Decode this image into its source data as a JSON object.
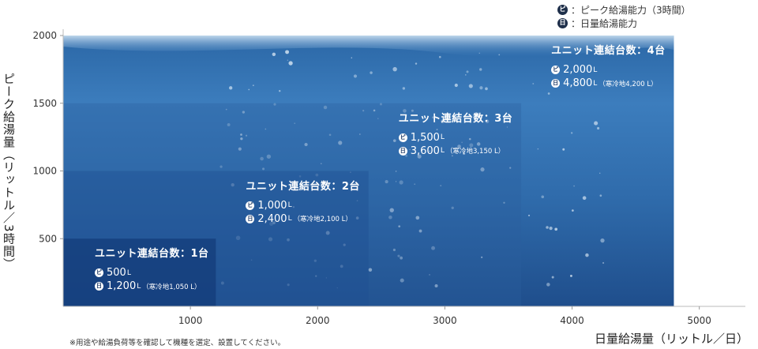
{
  "legend": {
    "peak_badge": "ピ",
    "peak_text": "：ピーク給湯能力（3時間）",
    "daily_badge": "日",
    "daily_text": "：日量給湯能力"
  },
  "axes": {
    "y_label": "ピーク給湯量（リットル／3時間）",
    "x_label": "日量給湯量（リットル／日）"
  },
  "footnote": "※用途や給湯負荷等を確認して機種を選定、設置してください。",
  "chart_data": {
    "type": "area",
    "x_ticks": [
      "1000",
      "2000",
      "3000",
      "4000",
      "5000"
    ],
    "y_ticks": [
      "500",
      "1000",
      "1500",
      "2000"
    ],
    "xlim": [
      0,
      5300
    ],
    "ylim": [
      0,
      2000
    ],
    "series": [
      {
        "title": "ユニット連結台数：1台",
        "peak_badge": "ピ",
        "peak_value": "500",
        "peak_unit": "L",
        "daily_badge": "日",
        "daily_value": "1,200",
        "daily_unit": "L",
        "cold_note": "（寒冷地1,050 L）",
        "peak": 500,
        "daily": 1200
      },
      {
        "title": "ユニット連結台数：2台",
        "peak_badge": "ピ",
        "peak_value": "1,000",
        "peak_unit": "L",
        "daily_badge": "日",
        "daily_value": "2,400",
        "daily_unit": "L",
        "cold_note": "（寒冷地2,100 L）",
        "peak": 1000,
        "daily": 2400
      },
      {
        "title": "ユニット連結台数：3台",
        "peak_badge": "ピ",
        "peak_value": "1,500",
        "peak_unit": "L",
        "daily_badge": "日",
        "daily_value": "3,600",
        "daily_unit": "L",
        "cold_note": "（寒冷地3,150 L）",
        "peak": 1500,
        "daily": 3600
      },
      {
        "title": "ユニット連結台数：4台",
        "peak_badge": "ピ",
        "peak_value": "2,000",
        "peak_unit": "L",
        "daily_badge": "日",
        "daily_value": "4,800",
        "daily_unit": "L",
        "cold_note": "（寒冷地4,200 L）",
        "peak": 2000,
        "daily": 4800
      }
    ]
  }
}
